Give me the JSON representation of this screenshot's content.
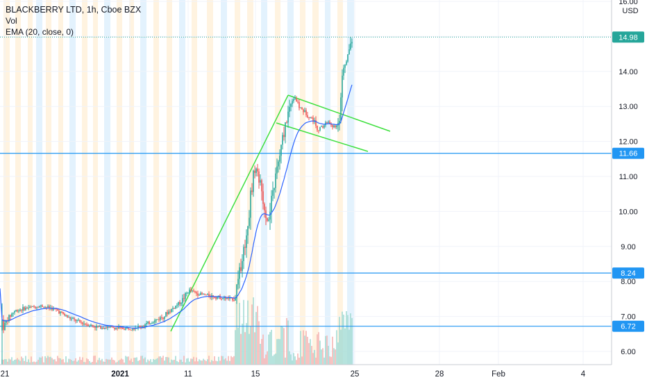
{
  "legend": {
    "title": "BLACKBERRY LTD, 1h, Cboe BZX",
    "volume": "Vol",
    "ema": "EMA (20, close, 0)"
  },
  "currency": "USD",
  "colors": {
    "up": "#26a69a",
    "down": "#ef5350",
    "ema": "#2962ff",
    "hline": "#2196f3",
    "trend": "#3ee03e",
    "last_price": "#26a69a",
    "session_orange": "#fff3e0",
    "session_blue": "#e3f2fd"
  },
  "chart_data": {
    "type": "candlestick",
    "title": "BLACKBERRY LTD, 1h, Cboe BZX",
    "indicators": [
      "Vol",
      "EMA (20, close, 0)"
    ],
    "y_axis": {
      "side": "right",
      "unit": "USD",
      "range": [
        5.7,
        16.0
      ],
      "ticks": [
        "6.00",
        "7.00",
        "8.00",
        "9.00",
        "10.00",
        "11.00",
        "12.00",
        "13.00",
        "14.00",
        "15.00",
        "16.00"
      ]
    },
    "x_axis": {
      "labels": [
        "21",
        "2021",
        "11",
        "15",
        "25",
        "28",
        "Feb",
        "4"
      ]
    },
    "price_lines": [
      {
        "value": 11.66,
        "label": "11.66"
      },
      {
        "value": 8.24,
        "label": "8.24"
      },
      {
        "value": 6.72,
        "label": "6.72"
      }
    ],
    "last_price": {
      "value": 14.98,
      "label": "14.98"
    },
    "grid": true,
    "legend_position": "top-left"
  }
}
